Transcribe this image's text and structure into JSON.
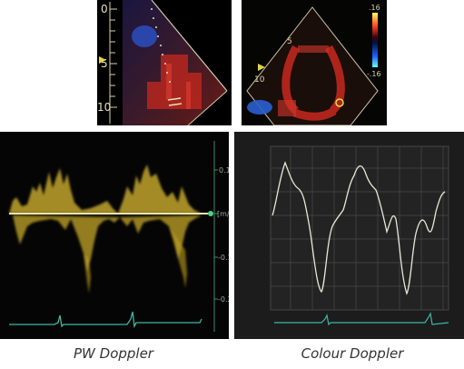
{
  "captions": {
    "pw": "PW Doppler",
    "colour": "Colour Doppler"
  },
  "pw_image": {
    "depth_labels": [
      "0",
      "5",
      "10"
    ]
  },
  "colour_image": {
    "depth_labels": [
      "5",
      "10"
    ],
    "scale_labels": [
      ".16",
      "-.16"
    ]
  },
  "pw_spectrum": {
    "velocity_unit": "[m/s]",
    "velocity_ticks": [
      "0.1",
      "-0.1",
      "-0.2"
    ]
  },
  "colors": {
    "spectrum": "#f2d64a",
    "ecg": "#3fb7a6",
    "baseline": "#e8e4b0",
    "colour_trace": "#e8e8d8",
    "sector_red": "#c8281e",
    "sector_blue": "#2a5fd0"
  }
}
